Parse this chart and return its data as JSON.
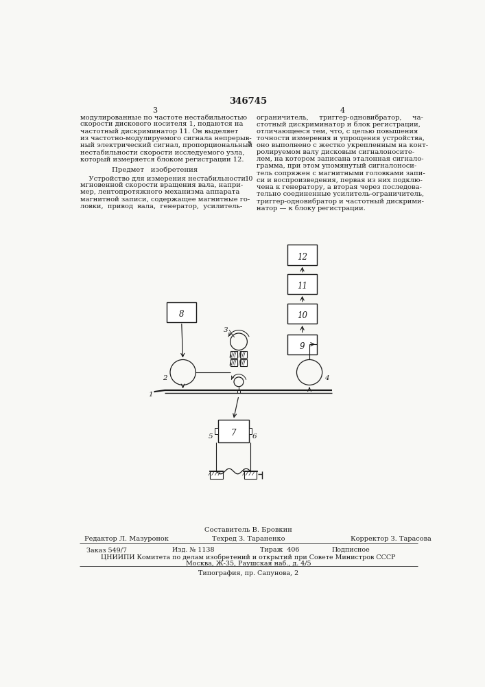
{
  "patent_number": "346745",
  "bg_color": "#f8f8f5",
  "col1_lines": [
    "модулированные по частоте нестабильностью",
    "скорости дискового носителя 1, подаются на",
    "частотный дискриминатор 11. Он выделяет",
    "из частотно-модулируемого сигнала непрерыв-",
    "ный электрический сигнал, пропорциональный",
    "нестабильности скорости исследуемого узла,",
    "который измеряется блоком регистрации 12."
  ],
  "heading": "Предмет   изобретения",
  "col1_body": [
    "    Устройство для измерения нестабильности",
    "мгновенной скорости вращения вала, напри-",
    "мер, лентопротяжного механизма аппарата",
    "магнитной записи, содержащее магнитные го-",
    "ловки,  привод  вала,  генератор,  усилитель-"
  ],
  "col2_lines": [
    "ограничитель,     триггер-одновибратор,     ча-",
    "стотный дискриминатор и блок регистрации,",
    "отличающееся тем, что, с целью повышения",
    "точности измерения и упрощения устройства,",
    "оно выполнено с жестко укрепленным на конт-",
    "ролируемом валу дисковым сигналоносите-",
    "лем, на котором записана эталонная сигнало-",
    "грамма, при этом упомянутый сигналоноси-",
    "тель сопряжен с магнитными головками запи-",
    "си и воспроизведения, первая из них подклю-",
    "чена к генератору, а вторая через последова-",
    "тельно соединенные усилитель-ограничитель,",
    "триггер-одновибратор и частотный дискрими-",
    "натор — к блоку регистрации."
  ],
  "footer_composer": "Составитель В. Бровкин",
  "footer_editor": "Редактор Л. Мазуронок",
  "footer_techred": "Техред З. Тараненко",
  "footer_corrector": "Корректор З. Тарасова",
  "footer_order": "Заказ 549/7",
  "footer_izd": "Изд. № 1138",
  "footer_tirazh": "Тираж  406",
  "footer_podp": "Подписное",
  "footer_org": "ЦНИИПИ Комитета по делам изобретений и открытий при Совете Министров СССР",
  "footer_addr": "Москва, Ж-35, Раушская наб., д. 4/5",
  "footer_tip": "Типография, пр. Сапунова, 2"
}
